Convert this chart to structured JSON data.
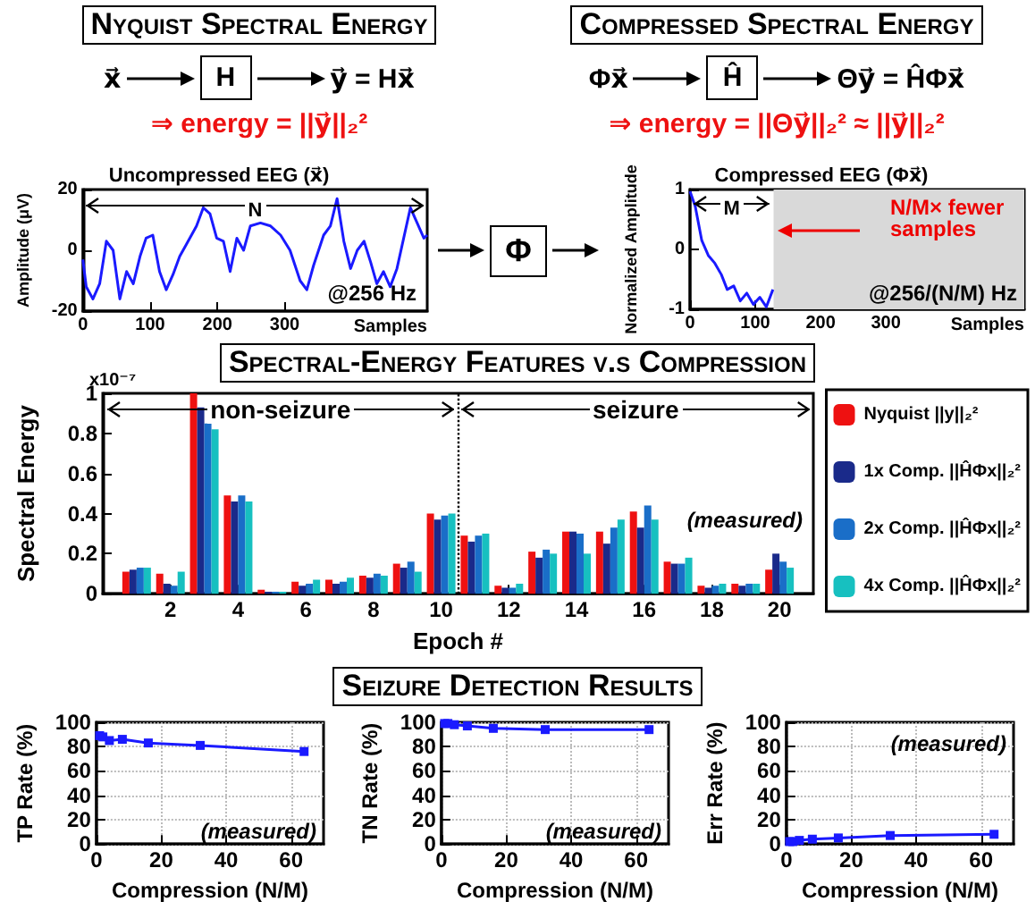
{
  "chart_data": [
    {
      "type": "other",
      "title": "Nyquist Spectral Energy",
      "annotations": [
        "x⃗",
        "H",
        "y⃗ = Hx⃗",
        "⇒ energy = ||y⃗||₂²"
      ]
    },
    {
      "type": "other",
      "title": "Compressed Spectral Energy",
      "annotations": [
        "Φx⃗",
        "Ĥ",
        "Θy⃗ = ĤΦx⃗",
        "⇒ energy = ||Θy⃗||₂² ≈ ||y⃗||₂²"
      ]
    },
    {
      "type": "line",
      "title": "Uncompressed EEG (x⃗)",
      "ylabel": "Amplitude (μV)",
      "xlabel": "Samples",
      "color": "#1a1aff",
      "marker": "none",
      "line_style": "solid",
      "legend": false,
      "x": [
        0,
        5,
        15,
        25,
        35,
        45,
        55,
        65,
        75,
        85,
        94,
        104,
        114,
        124,
        134,
        144,
        154,
        169,
        179,
        189,
        199,
        209,
        219,
        229,
        239,
        249,
        264,
        279,
        294,
        308,
        323,
        333,
        343,
        358,
        368,
        378,
        388,
        398,
        408,
        418,
        428,
        437,
        447,
        457,
        467,
        477,
        487,
        497,
        507,
        512
      ],
      "values": [
        -3,
        -12,
        -16,
        -11,
        3,
        0,
        -16,
        -7,
        -11,
        -2,
        4,
        5,
        -7,
        -13,
        -8,
        -2,
        2,
        8,
        14,
        12,
        4,
        3,
        -7,
        4,
        0,
        8,
        9,
        8,
        5,
        0,
        -10,
        -13,
        -5,
        5,
        8,
        17,
        3,
        -6,
        0,
        3,
        -4,
        -11,
        -7,
        -12,
        -6,
        4,
        14,
        9,
        4,
        5
      ],
      "xlim": [
        0,
        512
      ],
      "xticks": [
        0,
        100,
        200,
        300
      ],
      "ylim": [
        -20,
        20
      ],
      "yticks": [
        -20,
        0,
        20
      ],
      "annotations": [
        "N",
        "@256 Hz"
      ]
    },
    {
      "type": "other",
      "annotations": [
        "Φ"
      ]
    },
    {
      "type": "line",
      "title": "Compressed EEG (Φx⃗)",
      "ylabel": "Normalized Amplitude",
      "xlabel": "Samples",
      "color": "#1a1aff",
      "marker": "none",
      "line_style": "solid",
      "legend": false,
      "x": [
        0,
        8,
        18,
        28,
        38,
        48,
        57,
        67,
        77,
        87,
        97,
        107,
        117,
        127
      ],
      "values": [
        0.97,
        0.72,
        0.15,
        -0.1,
        -0.23,
        -0.42,
        -0.67,
        -0.61,
        -0.86,
        -0.73,
        -0.92,
        -0.8,
        -0.96,
        -0.67
      ],
      "xlim": [
        0,
        512
      ],
      "xticks": [
        0,
        100,
        200,
        300
      ],
      "ylim": [
        -1,
        1
      ],
      "yticks": [
        -1,
        0,
        1
      ],
      "bands": [
        {
          "axis": "x",
          "from": 128,
          "to": 512,
          "color": "#d9d9d9"
        }
      ],
      "annotations": [
        "M",
        "N/M× fewer samples",
        "@256/(N/M) Hz"
      ]
    },
    {
      "type": "bar",
      "title": "Spectral-Energy Features v.s Compression",
      "xlabel": "Epoch #",
      "ylabel": "Spectral Energy",
      "legend": "right",
      "x": [
        1,
        2,
        3,
        4,
        5,
        6,
        7,
        8,
        9,
        10,
        11,
        12,
        13,
        14,
        15,
        16,
        17,
        18,
        19,
        20
      ],
      "xlim": [
        0,
        21
      ],
      "xticks": [
        2,
        4,
        6,
        8,
        10,
        12,
        14,
        16,
        18,
        20
      ],
      "ylim": [
        0,
        1
      ],
      "yticks": [
        0,
        0.2,
        0.4,
        0.6,
        0.8,
        1
      ],
      "series": [
        {
          "name": "Nyquist ||y||₂²",
          "color": "#ee1111",
          "values": [
            0.11,
            0.1,
            1.0,
            0.49,
            0.02,
            0.06,
            0.07,
            0.09,
            0.15,
            0.4,
            0.29,
            0.04,
            0.21,
            0.31,
            0.31,
            0.41,
            0.16,
            0.04,
            0.05,
            0.12
          ]
        },
        {
          "name": "1x Comp. ||ĤΦx||₂²",
          "color": "#1a2a8a",
          "values": [
            0.12,
            0.05,
            0.93,
            0.46,
            0.01,
            0.04,
            0.05,
            0.08,
            0.13,
            0.37,
            0.26,
            0.03,
            0.18,
            0.31,
            0.25,
            0.33,
            0.15,
            0.03,
            0.04,
            0.2
          ]
        },
        {
          "name": "2x Comp. ||ĤΦx||₂²",
          "color": "#1a6ec8",
          "values": [
            0.13,
            0.04,
            0.85,
            0.49,
            0.01,
            0.05,
            0.06,
            0.1,
            0.16,
            0.39,
            0.29,
            0.03,
            0.22,
            0.3,
            0.33,
            0.44,
            0.15,
            0.04,
            0.05,
            0.16
          ]
        },
        {
          "name": "4x Comp. ||ĤΦx||₂²",
          "color": "#17c0c0",
          "values": [
            0.13,
            0.11,
            0.82,
            0.46,
            0.01,
            0.07,
            0.08,
            0.09,
            0.11,
            0.4,
            0.3,
            0.05,
            0.2,
            0.2,
            0.37,
            0.37,
            0.18,
            0.05,
            0.05,
            0.13
          ]
        }
      ],
      "ref_lines": [
        {
          "axis": "x",
          "value": 10.5,
          "line_style": "dotted"
        }
      ],
      "annotations": [
        {
          "text": "non-seizure",
          "x": 10.5,
          "y": 0.92
        },
        {
          "text": "seizure",
          "x": 10.5,
          "y": 0.92
        },
        "x10⁻⁷",
        "(measured)"
      ]
    },
    {
      "type": "other",
      "title": "Seizure Detection Results"
    },
    {
      "type": "line",
      "xlabel": "Compression (N/M)",
      "ylabel": "TP Rate (%)",
      "color": "#1a1aff",
      "marker": "square",
      "line_style": "solid",
      "grid": true,
      "legend": false,
      "x": [
        1,
        2,
        4,
        8,
        16,
        32,
        64
      ],
      "values": [
        89,
        88,
        85,
        86,
        83,
        81,
        76
      ],
      "xlim": [
        0,
        70
      ],
      "xticks": [
        0,
        20,
        40,
        60
      ],
      "ylim": [
        0,
        100
      ],
      "yticks": [
        0,
        20,
        40,
        60,
        80,
        100
      ],
      "annotations": [
        "(measured)"
      ]
    },
    {
      "type": "line",
      "xlabel": "Compression (N/M)",
      "ylabel": "TN Rate (%)",
      "color": "#1a1aff",
      "marker": "square",
      "line_style": "solid",
      "grid": true,
      "legend": false,
      "x": [
        1,
        2,
        4,
        8,
        16,
        32,
        64
      ],
      "values": [
        99,
        99,
        98,
        97,
        95,
        94,
        94
      ],
      "xlim": [
        0,
        70
      ],
      "xticks": [
        0,
        20,
        40,
        60
      ],
      "ylim": [
        0,
        100
      ],
      "yticks": [
        0,
        20,
        40,
        60,
        80,
        100
      ],
      "annotations": [
        "(measured)"
      ]
    },
    {
      "type": "line",
      "xlabel": "Compression (N/M)",
      "ylabel": "Err Rate (%)",
      "color": "#1a1aff",
      "marker": "square",
      "line_style": "solid",
      "grid": true,
      "legend": false,
      "x": [
        1,
        2,
        4,
        8,
        16,
        32,
        64
      ],
      "values": [
        2,
        2,
        3,
        4,
        5,
        7,
        8
      ],
      "xlim": [
        0,
        70
      ],
      "xticks": [
        0,
        20,
        40,
        60
      ],
      "ylim": [
        0,
        100
      ],
      "yticks": [
        0,
        20,
        40,
        60,
        80,
        100
      ],
      "annotations": [
        "(measured)"
      ]
    }
  ]
}
